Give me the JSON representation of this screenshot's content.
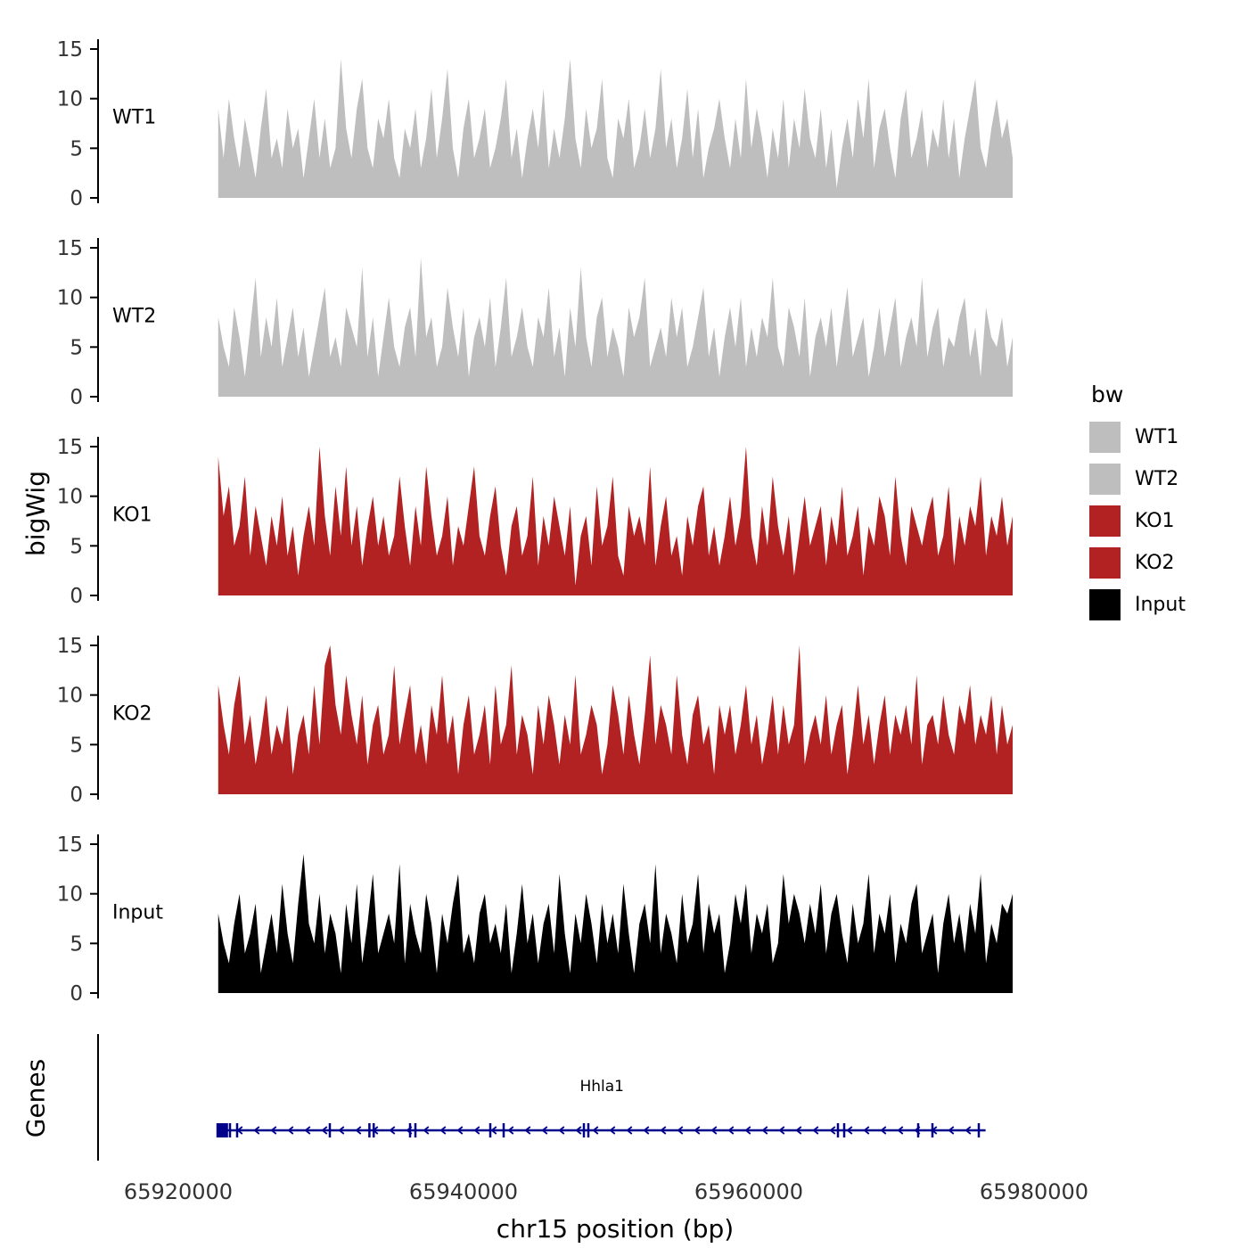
{
  "figure": {
    "ylab": "bigWig",
    "genes_lab": "Genes",
    "xlab": "chr15 position (bp)"
  },
  "chart_data": {
    "type": "area",
    "title": "",
    "xlabel": "chr15 position (bp)",
    "ylabel": "bigWig",
    "x_domain": [
      65920000,
      65980000
    ],
    "x_ticks": [
      65920000,
      65940000,
      65960000,
      65980000
    ],
    "x_tick_labels": [
      "65920000",
      "65940000",
      "65960000",
      "65980000"
    ],
    "y_ticks": [
      0,
      5,
      10,
      15
    ],
    "ylim": [
      0,
      15.5
    ],
    "grid": "off",
    "legend_position": "right",
    "signal_start": 65922800,
    "signal_end": 65978500,
    "tracks": [
      {
        "name": "WT1",
        "color": "#bebebe",
        "values": [
          9,
          4,
          10,
          6,
          3,
          8,
          5,
          2,
          7,
          11,
          4,
          6,
          3,
          9,
          5,
          7,
          2,
          6,
          10,
          4,
          8,
          3,
          5,
          14,
          7,
          4,
          9,
          12,
          5,
          3,
          8,
          6,
          10,
          4,
          2,
          7,
          5,
          9,
          3,
          6,
          11,
          4,
          8,
          13,
          5,
          2,
          7,
          10,
          4,
          6,
          9,
          3,
          5,
          8,
          12,
          4,
          7,
          2,
          6,
          9,
          5,
          11,
          3,
          7,
          4,
          8,
          14,
          6,
          3,
          9,
          5,
          7,
          12,
          4,
          2,
          8,
          6,
          10,
          3,
          5,
          9,
          4,
          7,
          13,
          5,
          8,
          3,
          6,
          11,
          4,
          9,
          2,
          5,
          7,
          10,
          6,
          3,
          8,
          4,
          12,
          5,
          9,
          6,
          2,
          7,
          4,
          10,
          3,
          8,
          5,
          11,
          6,
          4,
          9,
          3,
          7,
          1,
          5,
          8,
          4,
          10,
          6,
          12,
          3,
          7,
          9,
          5,
          2,
          8,
          11,
          4,
          6,
          9,
          3,
          7,
          5,
          10,
          4,
          8,
          2,
          6,
          9,
          12,
          5,
          3,
          7,
          10,
          6,
          8,
          4
        ]
      },
      {
        "name": "WT2",
        "color": "#bebebe",
        "values": [
          8,
          5,
          3,
          9,
          6,
          2,
          7,
          12,
          4,
          8,
          5,
          10,
          3,
          6,
          9,
          4,
          7,
          2,
          5,
          8,
          11,
          4,
          6,
          3,
          9,
          7,
          5,
          13,
          4,
          8,
          2,
          6,
          10,
          5,
          3,
          7,
          9,
          4,
          14,
          6,
          8,
          3,
          5,
          11,
          7,
          4,
          9,
          2,
          6,
          8,
          5,
          10,
          3,
          7,
          12,
          4,
          6,
          9,
          5,
          3,
          8,
          6,
          11,
          4,
          7,
          2,
          9,
          5,
          13,
          6,
          3,
          8,
          10,
          4,
          7,
          5,
          2,
          9,
          6,
          8,
          12,
          3,
          5,
          7,
          4,
          10,
          6,
          9,
          3,
          5,
          8,
          11,
          4,
          7,
          2,
          6,
          9,
          5,
          10,
          3,
          7,
          4,
          8,
          6,
          12,
          5,
          3,
          9,
          7,
          4,
          10,
          2,
          6,
          8,
          5,
          9,
          3,
          7,
          11,
          4,
          6,
          8,
          2,
          5,
          9,
          4,
          7,
          10,
          3,
          6,
          8,
          5,
          12,
          4,
          7,
          9,
          3,
          6,
          5,
          8,
          10,
          4,
          7,
          2,
          9,
          6,
          5,
          8,
          3,
          6
        ]
      },
      {
        "name": "KO1",
        "color": "#b22222",
        "values": [
          14,
          8,
          11,
          5,
          7,
          12,
          4,
          9,
          6,
          3,
          8,
          5,
          10,
          4,
          7,
          2,
          6,
          9,
          5,
          15,
          8,
          4,
          11,
          6,
          13,
          5,
          9,
          3,
          7,
          10,
          5,
          8,
          4,
          6,
          12,
          7,
          3,
          9,
          5,
          13,
          8,
          4,
          6,
          10,
          3,
          7,
          5,
          9,
          13,
          6,
          4,
          8,
          11,
          5,
          2,
          7,
          9,
          4,
          6,
          12,
          3,
          8,
          5,
          10,
          7,
          4,
          9,
          1,
          6,
          8,
          3,
          11,
          5,
          7,
          12,
          4,
          2,
          9,
          6,
          8,
          5,
          13,
          3,
          7,
          10,
          4,
          6,
          2,
          8,
          5,
          9,
          11,
          4,
          7,
          3,
          6,
          10,
          5,
          8,
          15,
          6,
          3,
          9,
          5,
          12,
          7,
          4,
          8,
          2,
          6,
          10,
          5,
          7,
          9,
          3,
          8,
          5,
          11,
          4,
          6,
          9,
          2,
          7,
          5,
          10,
          8,
          4,
          12,
          6,
          3,
          9,
          7,
          5,
          8,
          10,
          4,
          6,
          11,
          3,
          8,
          5,
          9,
          7,
          12,
          4,
          8,
          6,
          10,
          5,
          8
        ]
      },
      {
        "name": "KO2",
        "color": "#b22222",
        "values": [
          11,
          7,
          4,
          9,
          12,
          5,
          8,
          3,
          6,
          10,
          4,
          7,
          5,
          9,
          2,
          6,
          8,
          4,
          11,
          5,
          13,
          15,
          9,
          6,
          12,
          8,
          5,
          10,
          3,
          7,
          9,
          4,
          6,
          13,
          5,
          8,
          11,
          4,
          7,
          3,
          9,
          6,
          12,
          5,
          8,
          2,
          7,
          10,
          4,
          6,
          9,
          3,
          11,
          5,
          7,
          13,
          4,
          8,
          6,
          2,
          9,
          5,
          10,
          7,
          3,
          8,
          5,
          12,
          4,
          6,
          9,
          7,
          2,
          5,
          11,
          8,
          4,
          10,
          6,
          3,
          8,
          14,
          5,
          9,
          7,
          4,
          12,
          6,
          3,
          8,
          10,
          5,
          7,
          2,
          9,
          6,
          9,
          4,
          7,
          11,
          5,
          8,
          3,
          6,
          10,
          4,
          9,
          5,
          7,
          15,
          3,
          6,
          8,
          5,
          10,
          4,
          7,
          9,
          2,
          6,
          11,
          5,
          8,
          3,
          7,
          10,
          4,
          8,
          6,
          9,
          5,
          12,
          3,
          7,
          8,
          5,
          10,
          6,
          4,
          9,
          7,
          11,
          5,
          8,
          6,
          10,
          4,
          9,
          5,
          7
        ]
      },
      {
        "name": "Input",
        "color": "#000000",
        "values": [
          8,
          5,
          3,
          7,
          10,
          4,
          6,
          9,
          2,
          5,
          8,
          4,
          11,
          6,
          3,
          9,
          14,
          7,
          5,
          10,
          4,
          8,
          6,
          2,
          9,
          5,
          11,
          3,
          7,
          12,
          4,
          6,
          8,
          5,
          13,
          3,
          9,
          6,
          4,
          10,
          7,
          2,
          8,
          5,
          9,
          12,
          4,
          6,
          3,
          8,
          10,
          5,
          7,
          4,
          9,
          2,
          6,
          11,
          5,
          8,
          3,
          7,
          9,
          4,
          12,
          6,
          2,
          8,
          5,
          10,
          7,
          3,
          9,
          5,
          8,
          4,
          11,
          6,
          2,
          7,
          9,
          5,
          13,
          4,
          8,
          6,
          3,
          10,
          5,
          7,
          12,
          4,
          9,
          6,
          8,
          2,
          5,
          10,
          7,
          11,
          4,
          8,
          6,
          9,
          3,
          5,
          12,
          7,
          10,
          8,
          5,
          9,
          6,
          11,
          4,
          8,
          10,
          6,
          3,
          9,
          5,
          7,
          12,
          4,
          8,
          6,
          10,
          3,
          7,
          5,
          9,
          11,
          4,
          6,
          8,
          2,
          7,
          10,
          5,
          8,
          4,
          9,
          6,
          12,
          3,
          7,
          5,
          9,
          8,
          10
        ]
      }
    ],
    "legend": {
      "title": "bw",
      "entries": [
        {
          "label": "WT1",
          "color": "#bebebe"
        },
        {
          "label": "WT2",
          "color": "#bebebe"
        },
        {
          "label": "KO1",
          "color": "#b22222"
        },
        {
          "label": "KO2",
          "color": "#b22222"
        },
        {
          "label": "Input",
          "color": "#000000"
        }
      ]
    },
    "gene": {
      "name": "Hhla1",
      "chrom": "chr15",
      "start": 65922800,
      "end": 65976600,
      "strand": "-",
      "color": "#00008b",
      "exons": [
        65923625,
        65924125,
        65930625,
        65933400,
        65933700,
        65936250,
        65936625,
        65941875,
        65942813,
        65948438,
        65948750,
        65966250,
        65966688,
        65971875,
        65972875,
        65976125
      ]
    }
  }
}
